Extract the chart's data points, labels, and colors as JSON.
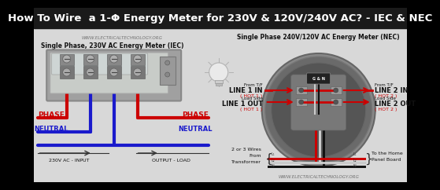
{
  "title": "How To Wire  a 1-Φ Energy Meter for 230V & 120V/240V AC? - IEC & NEC",
  "title_bg": "#1a1a1a",
  "title_color": "#ffffff",
  "title_fontsize": 9.5,
  "bg_color": "#d8d8d8",
  "left_label": "Single Phase, 230V AC Energy Meter (IEC)",
  "right_label": "Single Phase 240V/120V AC Energy Meter (NEC)",
  "watermark": "WWW.ELECTRICALTECHNOLOGY.ORG",
  "watermark2": "WWW.ELECTRICALTECHNOLOGY.ORG",
  "phase_color": "#cc0000",
  "neutral_color": "#1a1acc",
  "wire_red": "#cc0000",
  "wire_blue": "#1a1acc",
  "wire_black": "#111111",
  "wire_white": "#dddddd",
  "meter_bg": "#b8b8b8",
  "meter_body": "#c8c8c8"
}
